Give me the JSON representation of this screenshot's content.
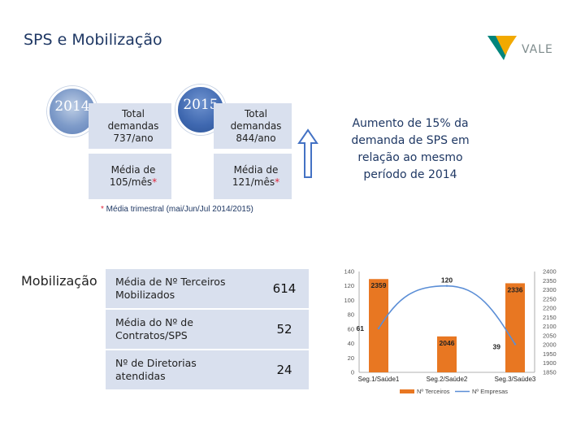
{
  "slide": {
    "title": "SPS e Mobilização",
    "logo_text": "VALE"
  },
  "colors": {
    "accent": "#e87722",
    "line": "#5b8ed6",
    "box": "#d9e0ee",
    "title": "#1f3864",
    "logo_green": "#00857c",
    "logo_yellow": "#f2a900",
    "arrow": "#4472c4"
  },
  "years": {
    "y2014": {
      "label": "2014",
      "total_line1": "Total",
      "total_line2": "demandas",
      "total_line3": "737/ano",
      "media_line1": "Média de",
      "media_line2": "105/mês",
      "media_star": "*"
    },
    "y2015": {
      "label": "2015",
      "total_line1": "Total",
      "total_line2": "demandas",
      "total_line3": "844/ano",
      "media_line1": "Média de",
      "media_line2": "121/mês",
      "media_star": "*"
    }
  },
  "increase_note": "Aumento de 15% da demanda de SPS em relação ao mesmo período de 2014",
  "footnote": {
    "star": "*",
    "text": " Média trimestral (mai/Jun/Jul 2014/2015)"
  },
  "mobilization": {
    "label": "Mobilização",
    "rows": [
      {
        "text": "Média de Nº Terceiros Mobilizados",
        "value": "614"
      },
      {
        "text": "Média do Nº de Contratos/SPS",
        "value": "52"
      },
      {
        "text": "Nº de Diretorias atendidas",
        "value": "24"
      }
    ]
  },
  "chart_data": {
    "type": "bar",
    "categories": [
      "Seg.1/Saúde1",
      "Seg.2/Saúde2",
      "Seg.3/Saúde3"
    ],
    "series": [
      {
        "name": "Nº Terceiros",
        "type": "bar",
        "axis": "right",
        "values": [
          2359,
          2046,
          2336
        ],
        "data_labels": [
          "2359",
          "2046",
          "2336"
        ]
      },
      {
        "name": "Nº Empresas",
        "type": "line",
        "axis": "left",
        "values": [
          61,
          120,
          39
        ],
        "data_labels": [
          "61",
          "120",
          "39"
        ]
      }
    ],
    "left_axis": {
      "min": 0,
      "max": 140,
      "ticks": [
        "0",
        "20",
        "40",
        "60",
        "80",
        "100",
        "120",
        "140"
      ]
    },
    "right_axis": {
      "min": 1850,
      "max": 2400,
      "ticks": [
        "1850",
        "1900",
        "1950",
        "2000",
        "2050",
        "2100",
        "2150",
        "2200",
        "2250",
        "2300",
        "2350",
        "2400"
      ]
    },
    "legend_position": "bottom",
    "grid": false
  }
}
